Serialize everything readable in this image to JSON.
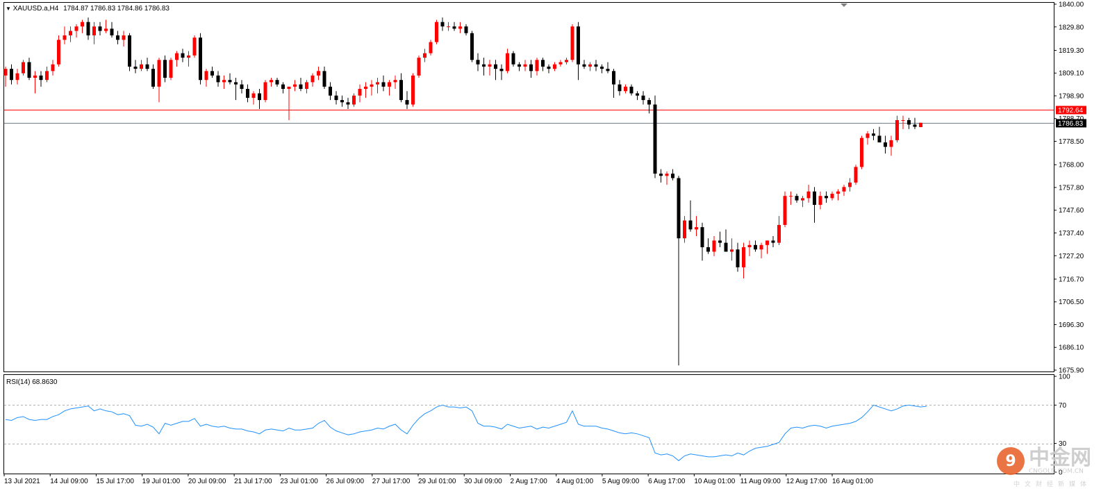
{
  "header": {
    "symbol_text": "XAUUSD.a,H4",
    "ohlc_text": "1784.87 1786.83 1784.86 1786.83"
  },
  "rsi_panel": {
    "label": "RSI(14) 68.8630",
    "levels": [
      "100",
      "70",
      "30",
      "0"
    ]
  },
  "watermark": {
    "mark": "9",
    "name": "中金网",
    "domain": "CNGOLD.COM.CN",
    "tagline": "中文财经新媒体"
  },
  "colors": {
    "bull": "#ff0000",
    "bear": "#000000",
    "resistance_line": "#ff0000",
    "price_line": "#708090",
    "rsi_line": "#1e90ff",
    "price_tag_red": "#ff0000",
    "price_tag_black": "#000000"
  },
  "chart_data": {
    "type": "candlestick",
    "title": "XAUUSD.a,H4",
    "ylim": [
      1675.9,
      1840.0
    ],
    "price_axis_labels": [
      "1840.00",
      "1829.80",
      "1819.30",
      "1809.10",
      "1798.90",
      "1788.70",
      "1778.50",
      "1768.00",
      "1757.80",
      "1747.60",
      "1737.40",
      "1727.20",
      "1716.70",
      "1706.50",
      "1696.30",
      "1686.10",
      "1675.90"
    ],
    "horizontal_lines": [
      {
        "label": "1792.64",
        "value": 1792.64,
        "color": "red"
      },
      {
        "label": "1786.83",
        "value": 1786.83,
        "color": "gray"
      }
    ],
    "time_labels": [
      "13 Jul 2021",
      "14 Jul 09:00",
      "15 Jul 17:00",
      "19 Jul 01:00",
      "20 Jul 09:00",
      "21 Jul 17:00",
      "23 Jul 01:00",
      "26 Jul 09:00",
      "27 Jul 17:00",
      "29 Jul 01:00",
      "30 Jul 09:00",
      "2 Aug 17:00",
      "4 Aug 01:00",
      "5 Aug 09:00",
      "6 Aug 17:00",
      "10 Aug 01:00",
      "11 Aug 09:00",
      "12 Aug 17:00",
      "16 Aug 01:00"
    ],
    "candles_ohlc": [
      [
        1808.0,
        1812.0,
        1803.0,
        1811.0
      ],
      [
        1811.0,
        1813.0,
        1804.0,
        1806.0
      ],
      [
        1806.0,
        1811.0,
        1804.0,
        1809.0
      ],
      [
        1809.0,
        1815.0,
        1808.0,
        1814.0
      ],
      [
        1814.0,
        1816.0,
        1806.0,
        1807.0
      ],
      [
        1807.0,
        1810.0,
        1800.0,
        1808.0
      ],
      [
        1808.0,
        1810.0,
        1803.0,
        1806.0
      ],
      [
        1806.0,
        1812.0,
        1805.0,
        1810.0
      ],
      [
        1810.0,
        1815.0,
        1808.0,
        1813.0
      ],
      [
        1813.0,
        1826.0,
        1812.0,
        1824.0
      ],
      [
        1824.0,
        1830.0,
        1822.0,
        1826.0
      ],
      [
        1826.0,
        1830.0,
        1823.0,
        1828.0
      ],
      [
        1828.0,
        1831.0,
        1825.0,
        1830.0
      ],
      [
        1830.0,
        1833.0,
        1827.0,
        1832.0
      ],
      [
        1832.0,
        1834.0,
        1824.0,
        1826.0
      ],
      [
        1826.0,
        1832.0,
        1822.0,
        1830.0
      ],
      [
        1830.0,
        1832.0,
        1826.0,
        1828.0
      ],
      [
        1828.0,
        1833.0,
        1827.0,
        1829.0
      ],
      [
        1829.0,
        1832.0,
        1825.0,
        1826.0
      ],
      [
        1826.0,
        1828.0,
        1822.0,
        1824.0
      ],
      [
        1824.0,
        1828.0,
        1821.0,
        1826.0
      ],
      [
        1826.0,
        1827.0,
        1810.0,
        1812.0
      ],
      [
        1812.0,
        1815.0,
        1809.0,
        1811.0
      ],
      [
        1811.0,
        1815.0,
        1810.0,
        1813.0
      ],
      [
        1813.0,
        1816.0,
        1810.0,
        1811.0
      ],
      [
        1811.0,
        1813.0,
        1802.0,
        1803.0
      ],
      [
        1803.0,
        1816.0,
        1796.0,
        1815.0
      ],
      [
        1815.0,
        1817.0,
        1805.0,
        1807.0
      ],
      [
        1807.0,
        1816.0,
        1806.0,
        1815.0
      ],
      [
        1815.0,
        1819.0,
        1812.0,
        1818.0
      ],
      [
        1818.0,
        1820.0,
        1814.0,
        1816.0
      ],
      [
        1816.0,
        1819.0,
        1812.0,
        1817.0
      ],
      [
        1817.0,
        1826.0,
        1816.0,
        1825.0
      ],
      [
        1825.0,
        1827.0,
        1804.0,
        1806.0
      ],
      [
        1806.0,
        1811.0,
        1803.0,
        1810.0
      ],
      [
        1810.0,
        1812.0,
        1807.0,
        1808.0
      ],
      [
        1808.0,
        1810.0,
        1803.0,
        1805.0
      ],
      [
        1805.0,
        1808.0,
        1802.0,
        1806.0
      ],
      [
        1806.0,
        1809.0,
        1804.0,
        1805.0
      ],
      [
        1805.0,
        1807.0,
        1797.0,
        1804.0
      ],
      [
        1804.0,
        1806.0,
        1800.0,
        1802.0
      ],
      [
        1802.0,
        1804.0,
        1796.0,
        1798.0
      ],
      [
        1798.0,
        1801.0,
        1795.0,
        1800.0
      ],
      [
        1800.0,
        1802.0,
        1793.0,
        1797.0
      ],
      [
        1797.0,
        1806.0,
        1796.0,
        1805.0
      ],
      [
        1805.0,
        1807.0,
        1803.0,
        1806.0
      ],
      [
        1806.0,
        1807.0,
        1803.0,
        1804.0
      ],
      [
        1804.0,
        1805.0,
        1800.0,
        1802.0
      ],
      [
        1802.0,
        1803.0,
        1788.0,
        1803.0
      ],
      [
        1803.0,
        1806.0,
        1801.0,
        1804.0
      ],
      [
        1804.0,
        1807.0,
        1801.0,
        1802.0
      ],
      [
        1802.0,
        1806.0,
        1800.0,
        1805.0
      ],
      [
        1805.0,
        1809.0,
        1803.0,
        1808.0
      ],
      [
        1808.0,
        1812.0,
        1806.0,
        1810.0
      ],
      [
        1810.0,
        1812.0,
        1802.0,
        1803.0
      ],
      [
        1803.0,
        1805.0,
        1797.0,
        1799.0
      ],
      [
        1799.0,
        1801.0,
        1795.0,
        1797.0
      ],
      [
        1797.0,
        1799.0,
        1794.0,
        1796.0
      ],
      [
        1796.0,
        1798.0,
        1793.0,
        1795.0
      ],
      [
        1795.0,
        1800.0,
        1794.0,
        1799.0
      ],
      [
        1799.0,
        1804.0,
        1796.0,
        1802.0
      ],
      [
        1802.0,
        1805.0,
        1798.0,
        1803.0
      ],
      [
        1803.0,
        1806.0,
        1799.0,
        1804.0
      ],
      [
        1804.0,
        1807.0,
        1800.0,
        1805.0
      ],
      [
        1805.0,
        1808.0,
        1801.0,
        1803.0
      ],
      [
        1803.0,
        1806.0,
        1799.0,
        1805.0
      ],
      [
        1805.0,
        1808.0,
        1802.0,
        1806.0
      ],
      [
        1806.0,
        1809.0,
        1796.0,
        1797.0
      ],
      [
        1797.0,
        1801.0,
        1793.0,
        1795.0
      ],
      [
        1795.0,
        1809.0,
        1794.0,
        1808.0
      ],
      [
        1808.0,
        1817.0,
        1807.0,
        1816.0
      ],
      [
        1816.0,
        1820.0,
        1814.0,
        1818.0
      ],
      [
        1818.0,
        1824.0,
        1817.0,
        1823.0
      ],
      [
        1823.0,
        1833.0,
        1822.0,
        1832.0
      ],
      [
        1832.0,
        1834.0,
        1828.0,
        1830.0
      ],
      [
        1830.0,
        1832.0,
        1828.0,
        1830.0
      ],
      [
        1830.0,
        1832.0,
        1828.0,
        1829.0
      ],
      [
        1829.0,
        1832.0,
        1827.0,
        1830.0
      ],
      [
        1830.0,
        1831.0,
        1826.0,
        1827.0
      ],
      [
        1827.0,
        1828.0,
        1814.0,
        1815.0
      ],
      [
        1815.0,
        1818.0,
        1810.0,
        1813.0
      ],
      [
        1813.0,
        1816.0,
        1808.0,
        1812.0
      ],
      [
        1812.0,
        1815.0,
        1808.0,
        1813.0
      ],
      [
        1813.0,
        1815.0,
        1806.0,
        1811.0
      ],
      [
        1811.0,
        1813.0,
        1806.0,
        1810.0
      ],
      [
        1810.0,
        1820.0,
        1809.0,
        1818.0
      ],
      [
        1818.0,
        1819.0,
        1812.0,
        1813.0
      ],
      [
        1813.0,
        1814.0,
        1810.0,
        1812.0
      ],
      [
        1812.0,
        1815.0,
        1810.0,
        1813.0
      ],
      [
        1813.0,
        1815.0,
        1807.0,
        1810.0
      ],
      [
        1810.0,
        1816.0,
        1808.0,
        1815.0
      ],
      [
        1815.0,
        1816.0,
        1810.0,
        1812.0
      ],
      [
        1812.0,
        1813.0,
        1809.0,
        1811.0
      ],
      [
        1811.0,
        1814.0,
        1810.0,
        1813.0
      ],
      [
        1813.0,
        1815.0,
        1812.0,
        1814.0
      ],
      [
        1814.0,
        1816.0,
        1813.0,
        1815.0
      ],
      [
        1815.0,
        1831.0,
        1814.0,
        1830.0
      ],
      [
        1830.0,
        1832.0,
        1806.0,
        1813.0
      ],
      [
        1813.0,
        1815.0,
        1811.0,
        1812.0
      ],
      [
        1812.0,
        1814.0,
        1810.0,
        1813.0
      ],
      [
        1813.0,
        1815.0,
        1810.0,
        1812.0
      ],
      [
        1812.0,
        1813.0,
        1809.0,
        1811.0
      ],
      [
        1811.0,
        1814.0,
        1809.0,
        1810.0
      ],
      [
        1810.0,
        1811.0,
        1798.0,
        1804.0
      ],
      [
        1804.0,
        1806.0,
        1799.0,
        1801.0
      ],
      [
        1801.0,
        1804.0,
        1800.0,
        1803.0
      ],
      [
        1803.0,
        1804.0,
        1799.0,
        1800.0
      ],
      [
        1800.0,
        1801.0,
        1797.0,
        1799.0
      ],
      [
        1799.0,
        1801.0,
        1795.0,
        1797.0
      ],
      [
        1797.0,
        1798.0,
        1791.0,
        1795.0
      ],
      [
        1795.0,
        1799.0,
        1762.0,
        1764.0
      ],
      [
        1764.0,
        1766.0,
        1760.0,
        1763.0
      ],
      [
        1763.0,
        1765.0,
        1759.0,
        1764.0
      ],
      [
        1764.0,
        1766.0,
        1761.0,
        1762.0
      ],
      [
        1762.0,
        1763.0,
        1678.0,
        1735.0
      ],
      [
        1735.0,
        1745.0,
        1733.0,
        1743.0
      ],
      [
        1743.0,
        1752.0,
        1738.0,
        1739.0
      ],
      [
        1739.0,
        1745.0,
        1736.0,
        1740.0
      ],
      [
        1740.0,
        1742.0,
        1725.0,
        1731.0
      ],
      [
        1731.0,
        1735.0,
        1728.0,
        1729.0
      ],
      [
        1729.0,
        1736.0,
        1727.0,
        1734.0
      ],
      [
        1734.0,
        1738.0,
        1731.0,
        1733.0
      ],
      [
        1733.0,
        1739.0,
        1729.0,
        1729.0
      ],
      [
        1729.0,
        1735.0,
        1725.0,
        1730.0
      ],
      [
        1730.0,
        1733.0,
        1720.0,
        1722.0
      ],
      [
        1722.0,
        1733.0,
        1717.0,
        1731.0
      ],
      [
        1731.0,
        1734.0,
        1727.0,
        1732.0
      ],
      [
        1732.0,
        1734.0,
        1729.0,
        1730.0
      ],
      [
        1730.0,
        1733.0,
        1726.0,
        1732.0
      ],
      [
        1732.0,
        1734.0,
        1728.0,
        1734.0
      ],
      [
        1734.0,
        1736.0,
        1731.0,
        1733.0
      ],
      [
        1733.0,
        1745.0,
        1732.0,
        1741.0
      ],
      [
        1741.0,
        1756.0,
        1740.0,
        1754.0
      ],
      [
        1754.0,
        1756.0,
        1750.0,
        1754.0
      ],
      [
        1754.0,
        1755.0,
        1751.0,
        1752.0
      ],
      [
        1752.0,
        1754.0,
        1749.0,
        1753.0
      ],
      [
        1753.0,
        1759.0,
        1751.0,
        1756.0
      ],
      [
        1756.0,
        1758.0,
        1742.0,
        1750.0
      ],
      [
        1750.0,
        1756.0,
        1748.0,
        1754.0
      ],
      [
        1754.0,
        1756.0,
        1751.0,
        1753.0
      ],
      [
        1753.0,
        1756.0,
        1752.0,
        1755.0
      ],
      [
        1755.0,
        1757.0,
        1752.0,
        1756.0
      ],
      [
        1756.0,
        1759.0,
        1754.0,
        1758.0
      ],
      [
        1758.0,
        1762.0,
        1756.0,
        1760.0
      ],
      [
        1760.0,
        1768.0,
        1759.0,
        1767.0
      ],
      [
        1767.0,
        1781.0,
        1766.0,
        1780.0
      ],
      [
        1780.0,
        1783.0,
        1777.0,
        1782.0
      ],
      [
        1782.0,
        1784.0,
        1779.0,
        1781.0
      ],
      [
        1781.0,
        1785.0,
        1780.0,
        1778.0
      ],
      [
        1778.0,
        1781.0,
        1773.0,
        1776.0
      ],
      [
        1776.0,
        1781.0,
        1772.0,
        1779.0
      ],
      [
        1779.0,
        1790.0,
        1778.0,
        1788.0
      ],
      [
        1788.0,
        1790.0,
        1784.0,
        1788.0
      ],
      [
        1788.0,
        1789.0,
        1784.0,
        1786.0
      ],
      [
        1786.0,
        1789.0,
        1784.0,
        1785.0
      ],
      [
        1784.87,
        1786.83,
        1784.86,
        1786.83
      ]
    ],
    "rsi_ylim": [
      0,
      100
    ],
    "rsi_levels": [
      70,
      30
    ],
    "rsi_values": [
      55,
      54,
      57,
      58,
      55,
      54,
      55,
      55,
      58,
      60,
      64,
      66,
      67,
      68,
      69,
      64,
      66,
      64,
      63,
      60,
      61,
      59,
      49,
      48,
      50,
      47,
      40,
      51,
      49,
      51,
      53,
      53,
      56,
      48,
      50,
      48,
      47,
      48,
      46,
      45,
      45,
      43,
      42,
      40,
      44,
      45,
      44,
      43,
      46,
      44,
      44,
      45,
      46,
      51,
      54,
      47,
      43,
      41,
      39,
      40,
      42,
      43,
      44,
      46,
      45,
      48,
      50,
      44,
      40,
      49,
      56,
      61,
      64,
      68,
      70,
      68,
      68,
      67,
      68,
      64,
      51,
      48,
      48,
      47,
      45,
      50,
      48,
      46,
      47,
      48,
      45,
      47,
      46,
      48,
      50,
      52,
      64,
      50,
      48,
      48,
      48,
      46,
      45,
      43,
      41,
      40,
      41,
      40,
      38,
      36,
      20,
      18,
      19,
      17,
      12,
      17,
      19,
      18,
      17,
      16,
      16,
      17,
      18,
      17,
      20,
      18,
      22,
      25,
      26,
      27,
      29,
      31,
      40,
      46,
      47,
      46,
      48,
      49,
      48,
      46,
      48,
      49,
      50,
      51,
      53,
      57,
      63,
      70,
      68,
      66,
      64,
      66,
      69,
      70,
      69,
      68,
      68.86
    ]
  }
}
